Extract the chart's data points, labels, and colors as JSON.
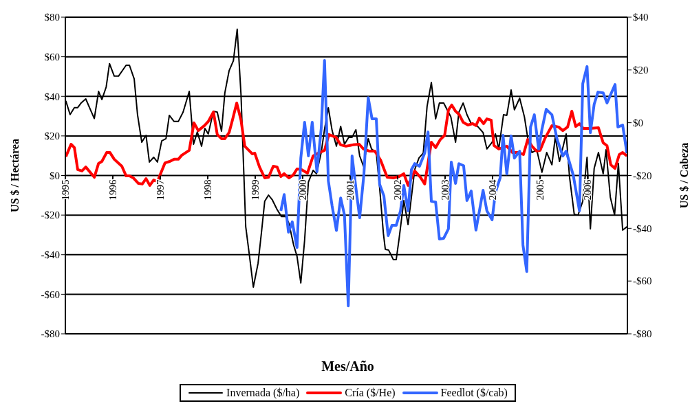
{
  "chart_data": {
    "type": "line",
    "xlabel": "Mes/Año",
    "ylabel": "US $ / Hectárea",
    "y2label": "US $ / Cabeza",
    "xlim": [
      1995,
      2006.84
    ],
    "xticks": [
      1995,
      1996,
      1997,
      1998,
      1999,
      2000,
      2001,
      2002,
      2003,
      2004,
      2005,
      2006
    ],
    "ylim": [
      -80,
      80
    ],
    "yticks": [
      {
        "value": -80,
        "label": "-$80"
      },
      {
        "value": -60,
        "label": "-$60"
      },
      {
        "value": -40,
        "label": "-$40"
      },
      {
        "value": -20,
        "label": "-$20"
      },
      {
        "value": 0,
        "label": "$0"
      },
      {
        "value": 20,
        "label": "$20"
      },
      {
        "value": 40,
        "label": "$40"
      },
      {
        "value": 60,
        "label": "$60"
      },
      {
        "value": 80,
        "label": "$80"
      }
    ],
    "y2lim": [
      -80,
      40
    ],
    "y2ticks": [
      {
        "value": -80,
        "label": "-$80"
      },
      {
        "value": -60,
        "label": "-$60"
      },
      {
        "value": -40,
        "label": "-$40"
      },
      {
        "value": -20,
        "label": "-$20"
      },
      {
        "value": 0,
        "label": "$0"
      },
      {
        "value": 20,
        "label": "$20"
      },
      {
        "value": 40,
        "label": "$40"
      }
    ],
    "grid": "y",
    "legend": "bottom",
    "line_style": "solid",
    "series": [
      {
        "name": "Invernada ($/ha)",
        "color": "#000000",
        "x": [
          1995.01,
          1995.1,
          1995.19,
          1995.26,
          1995.33,
          1995.43,
          1995.54,
          1995.61,
          1995.7,
          1995.77,
          1995.86,
          1995.93,
          1996.03,
          1996.12,
          1996.28,
          1996.35,
          1996.45,
          1996.52,
          1996.61,
          1996.7,
          1996.77,
          1996.86,
          1996.94,
          1997.03,
          1997.12,
          1997.19,
          1997.29,
          1997.38,
          1997.48,
          1997.61,
          1997.7,
          1997.78,
          1997.87,
          1997.94,
          1998.01,
          1998.12,
          1998.2,
          1998.29,
          1998.36,
          1998.45,
          1998.54,
          1998.62,
          1998.7,
          1998.8,
          1998.88,
          1998.96,
          1999.06,
          1999.13,
          1999.2,
          1999.28,
          1999.36,
          1999.46,
          1999.55,
          1999.64,
          1999.71,
          1999.81,
          1999.88,
          1999.96,
          2000.04,
          2000.12,
          2000.22,
          2000.29,
          2000.39,
          2000.46,
          2000.54,
          2000.62,
          2000.71,
          2000.8,
          2000.88,
          2000.97,
          2001.04,
          2001.12,
          2001.2,
          2001.28,
          2001.38,
          2001.45,
          2001.55,
          2001.62,
          2001.7,
          2001.74,
          2001.81,
          2001.91,
          2001.97,
          2002.03,
          2002.13,
          2002.22,
          2002.29,
          2002.36,
          2002.45,
          2002.54,
          2002.62,
          2002.71,
          2002.8,
          2002.88,
          2002.97,
          2003.12,
          2003.22,
          2003.29,
          2003.38,
          2003.46,
          2003.55,
          2003.67,
          2003.8,
          2003.88,
          2003.99,
          2004.06,
          2004.13,
          2004.23,
          2004.3,
          2004.39,
          2004.46,
          2004.57,
          2004.67,
          2004.75,
          2004.83,
          2004.93,
          2005.04,
          2005.14,
          2005.25,
          2005.32,
          2005.41,
          2005.55,
          2005.62,
          2005.72,
          2005.8,
          2005.9,
          2005.99,
          2006.06,
          2006.14,
          2006.23,
          2006.33,
          2006.39,
          2006.48,
          2006.57,
          2006.65,
          2006.74,
          2006.83
        ],
        "values": [
          37.7,
          30.8,
          34.3,
          34.3,
          36.6,
          38.7,
          32.6,
          28.8,
          42.5,
          38.4,
          44.7,
          56.5,
          50.2,
          50.2,
          55.7,
          55.7,
          48.8,
          30.8,
          16.8,
          20.3,
          6.8,
          9.2,
          6.8,
          17.5,
          18.6,
          30.4,
          27.3,
          27.3,
          32,
          42.5,
          15.8,
          22,
          14.8,
          23.8,
          21,
          32.5,
          32,
          22.4,
          41.8,
          53,
          58,
          73.9,
          41,
          -25.9,
          -40.8,
          -56.4,
          -44.3,
          -29,
          -13,
          -9.9,
          -12.3,
          -17.2,
          -20.7,
          -20.7,
          -24.2,
          -35.2,
          -40.8,
          -54.3,
          -32.8,
          -3.3,
          2.6,
          0.9,
          11.6,
          23.4,
          34.2,
          22.7,
          14.8,
          24.8,
          15.8,
          19.3,
          19.3,
          23.1,
          9.9,
          4.7,
          18.6,
          13.4,
          11.6,
          -6,
          -29.3,
          -37.3,
          -37.7,
          -42.5,
          -42.5,
          -32.1,
          -12.7,
          -24.8,
          -10.9,
          3,
          8.9,
          11.3,
          34.9,
          47,
          28.6,
          36.6,
          36.6,
          29.7,
          16.8,
          32,
          36.6,
          30.7,
          26.2,
          25.2,
          21.7,
          13.4,
          16.8,
          21,
          13.4,
          30.7,
          30.4,
          43.2,
          33.2,
          39.1,
          29.7,
          17.5,
          11.6,
          13,
          1.6,
          11.6,
          5.4,
          19.3,
          7.1,
          21,
          -0.5,
          -19.6,
          -20,
          -13,
          9.2,
          -27,
          3.6,
          11.6,
          0.9,
          13,
          -10.9,
          -20,
          6.1,
          -27.6,
          -25.9
        ]
      },
      {
        "name": "Cría ($/He)",
        "color": "#ff0000",
        "x": [
          1995.01,
          1995.12,
          1995.19,
          1995.26,
          1995.35,
          1995.43,
          1995.61,
          1995.7,
          1995.77,
          1995.87,
          1995.94,
          1996.03,
          1996.19,
          1996.28,
          1996.35,
          1996.43,
          1996.54,
          1996.62,
          1996.7,
          1996.78,
          1996.86,
          1996.94,
          1997.1,
          1997.2,
          1997.29,
          1997.38,
          1997.45,
          1997.61,
          1997.71,
          1997.8,
          1997.93,
          1998.01,
          1998.12,
          1998.2,
          1998.29,
          1998.36,
          1998.45,
          1998.52,
          1998.61,
          1998.7,
          1998.78,
          1998.94,
          1998.99,
          1999.09,
          1999.2,
          1999.28,
          1999.38,
          1999.46,
          1999.54,
          1999.61,
          1999.71,
          1999.8,
          1999.88,
          1999.97,
          2000.1,
          2000.22,
          2000.33,
          2000.46,
          2000.55,
          2000.7,
          2000.8,
          2000.91,
          2001.06,
          2001.19,
          2001.28,
          2001.41,
          2001.52,
          2001.64,
          2001.78,
          2001.91,
          2002.03,
          2002.13,
          2002.22,
          2002.36,
          2002.48,
          2002.57,
          2002.71,
          2002.8,
          2002.9,
          2002.99,
          2003.07,
          2003.14,
          2003.22,
          2003.3,
          2003.38,
          2003.48,
          2003.58,
          2003.65,
          2003.72,
          2003.81,
          2003.88,
          2003.97,
          2004.03,
          2004.13,
          2004.3,
          2004.42,
          2004.54,
          2004.65,
          2004.74,
          2004.83,
          2004.93,
          2005,
          2005.1,
          2005.25,
          2005.39,
          2005.48,
          2005.58,
          2005.67,
          2005.75,
          2005.83,
          2005.91,
          2006.04,
          2006.23,
          2006.33,
          2006.41,
          2006.49,
          2006.58,
          2006.67,
          2006.74,
          2006.83
        ],
        "values": [
          9.5,
          15.8,
          14.1,
          3,
          2.3,
          4.3,
          -0.9,
          6.1,
          7.1,
          11.6,
          11.6,
          8.2,
          4.7,
          -0.2,
          -0.2,
          -1.2,
          -4,
          -4.3,
          -1.6,
          -5,
          -2.3,
          -3,
          6.4,
          7.1,
          8.2,
          8.2,
          10.2,
          12.7,
          26.6,
          22.7,
          25.2,
          27.3,
          32.1,
          20.7,
          18.6,
          18.6,
          21.7,
          28,
          36.6,
          28,
          14.8,
          10.9,
          11.3,
          4.3,
          -1.2,
          -0.9,
          4.7,
          4.3,
          -0.5,
          0.9,
          -1.2,
          0.2,
          3.3,
          3,
          1.2,
          9.9,
          11.3,
          12.7,
          20.7,
          19.3,
          15.5,
          14.8,
          15.5,
          15.8,
          13.4,
          12.3,
          12.3,
          7.8,
          -0.9,
          -1.2,
          -0.5,
          0.9,
          -5,
          2.3,
          -0.9,
          -4.3,
          16.8,
          14.1,
          18.2,
          20.3,
          33.1,
          35.6,
          32.5,
          30.7,
          26.9,
          25.5,
          26.2,
          25.2,
          29,
          26.2,
          28.6,
          28,
          15.1,
          13.4,
          14.8,
          11.6,
          11.6,
          10.6,
          18.2,
          14.8,
          12.3,
          12.7,
          18.6,
          25.2,
          24.5,
          22.7,
          24.5,
          32.5,
          24.8,
          26.2,
          23.8,
          23.8,
          24.1,
          16.5,
          15.1,
          5.4,
          3.6,
          10.6,
          11.6,
          9.9
        ]
      },
      {
        "name": "Feedlot ($/cab)",
        "color": "#3366ff",
        "axis": "y2",
        "x": [
          1999.54,
          1999.61,
          1999.7,
          1999.78,
          1999.88,
          1999.96,
          2000.04,
          2000.12,
          2000.2,
          2000.3,
          2000.39,
          2000.46,
          2000.54,
          2000.62,
          2000.71,
          2000.8,
          2000.88,
          2000.96,
          2001.04,
          2001.12,
          2001.2,
          2001.29,
          2001.38,
          2001.46,
          2001.55,
          2001.62,
          2001.71,
          2001.8,
          2001.88,
          2001.97,
          2002.06,
          2002.13,
          2002.22,
          2002.29,
          2002.36,
          2002.46,
          2002.57,
          2002.64,
          2002.71,
          2002.8,
          2002.88,
          2002.97,
          2003.07,
          2003.13,
          2003.22,
          2003.29,
          2003.39,
          2003.46,
          2003.55,
          2003.65,
          2003.8,
          2003.88,
          2003.99,
          2004.06,
          2004.16,
          2004.22,
          2004.3,
          2004.39,
          2004.46,
          2004.57,
          2004.64,
          2004.72,
          2004.8,
          2004.88,
          2004.97,
          2005.04,
          2005.13,
          2005.25,
          2005.36,
          2005.48,
          2005.55,
          2005.7,
          2005.83,
          2005.9,
          2005.99,
          2006.06,
          2006.14,
          2006.22,
          2006.33,
          2006.41,
          2006.49,
          2006.58,
          2006.64,
          2006.74,
          2006.83
        ],
        "values": [
          -33.4,
          -27.2,
          -41.5,
          -37.6,
          -47.3,
          -13.4,
          0.2,
          -12.6,
          0.2,
          -18.6,
          -2.2,
          23.6,
          -22,
          -31.6,
          -40.8,
          -28.5,
          -35,
          -69.4,
          -12.6,
          -24.6,
          -36,
          -19.4,
          9.5,
          1.5,
          1.5,
          -23.3,
          -27.7,
          -42.8,
          -38.9,
          -38.9,
          -33.4,
          -23.8,
          -33.4,
          -17.8,
          -15.5,
          -16.5,
          -11.5,
          -3.5,
          -29.8,
          -30.1,
          -44.1,
          -43.8,
          -40.2,
          -14.9,
          -23,
          -15.5,
          -16.3,
          -29.5,
          -25.9,
          -40.7,
          -25.6,
          -33.4,
          -36.8,
          -26.4,
          -20.9,
          -4.8,
          -19.4,
          -5,
          -13.4,
          -10.8,
          -46.4,
          -56.4,
          -1.6,
          3,
          -10,
          -2.5,
          5.1,
          3,
          -6.4,
          -12.6,
          -10.8,
          -19.9,
          -33.4,
          14.8,
          21.3,
          -3.8,
          7,
          11.6,
          11.3,
          7.5,
          10.8,
          14.5,
          -1.6,
          -0.9,
          -11.5
        ]
      }
    ]
  }
}
